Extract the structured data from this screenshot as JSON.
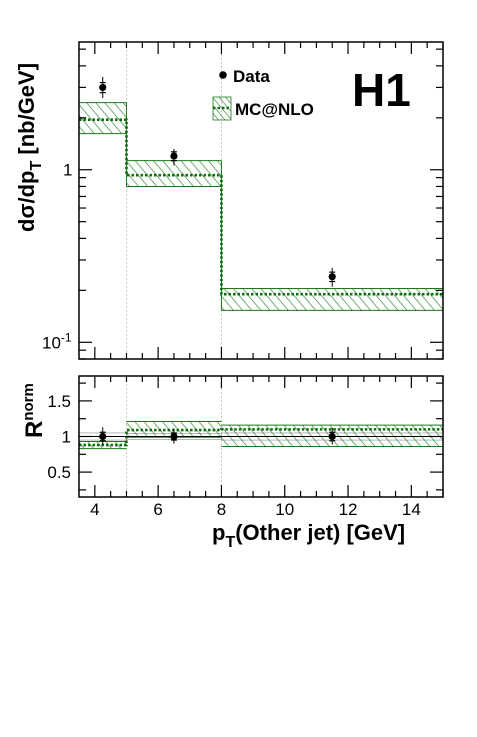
{
  "chart_data": [
    {
      "type": "line",
      "logo": "H1",
      "yscale": "log",
      "ylabel": "dσ/dp_T [nb/GeV]",
      "ylim": [
        0.08,
        5.5
      ],
      "xlim": [
        3.5,
        15
      ],
      "yticks": [
        {
          "value": 0.1,
          "label": "10",
          "sup": "-1"
        },
        {
          "value": 1,
          "label": "1",
          "sup": ""
        }
      ],
      "legend": [
        {
          "name": "Data",
          "marker": "dot"
        },
        {
          "name": "MC@NLO",
          "marker": "hatched-band"
        }
      ],
      "legend_position": "top-center",
      "bins": [
        [
          3.5,
          5
        ],
        [
          5,
          8
        ],
        [
          8,
          15
        ]
      ],
      "series": [
        {
          "name": "Data",
          "x": [
            4.25,
            6.5,
            11.5
          ],
          "y": [
            3.0,
            1.2,
            0.24
          ],
          "err_total": [
            [
              2.6,
              3.45
            ],
            [
              1.06,
              1.32
            ],
            [
              0.21,
              0.27
            ]
          ],
          "err_stat": [
            [
              2.8,
              3.2
            ],
            [
              1.13,
              1.27
            ],
            [
              0.225,
              0.255
            ]
          ]
        },
        {
          "name": "MC@NLO",
          "central": [
            1.95,
            0.93,
            0.19
          ],
          "band_low": [
            1.62,
            0.8,
            0.153
          ],
          "band_high": [
            2.45,
            1.13,
            0.205
          ]
        }
      ]
    },
    {
      "type": "line",
      "ylabel": "R",
      "ylabel_sup": "norm",
      "xlabel": "p_T(Other jet)  [GeV]",
      "xlim": [
        3.5,
        15
      ],
      "ylim": [
        0.15,
        1.85
      ],
      "yticks": [
        0.5,
        1,
        1.5
      ],
      "xticks": [
        4,
        6,
        8,
        10,
        12,
        14
      ],
      "series": [
        {
          "name": "Data",
          "x": [
            4.25,
            6.5,
            11.5
          ],
          "y": [
            1.0,
            1.0,
            1.0
          ],
          "err_total": [
            [
              0.88,
              1.13
            ],
            [
              0.9,
              1.11
            ],
            [
              0.89,
              1.12
            ]
          ],
          "err_stat": [
            [
              0.94,
              1.06
            ],
            [
              0.95,
              1.05
            ],
            [
              0.94,
              1.06
            ]
          ],
          "band_low": [
            0.95,
            0.96,
            0.95
          ],
          "band_high": [
            1.05,
            1.04,
            1.05
          ]
        },
        {
          "name": "MC@NLO",
          "central": [
            0.88,
            1.09,
            1.1
          ],
          "band_low": [
            0.83,
            0.99,
            0.86
          ],
          "band_high": [
            0.93,
            1.21,
            1.16
          ]
        }
      ]
    }
  ]
}
